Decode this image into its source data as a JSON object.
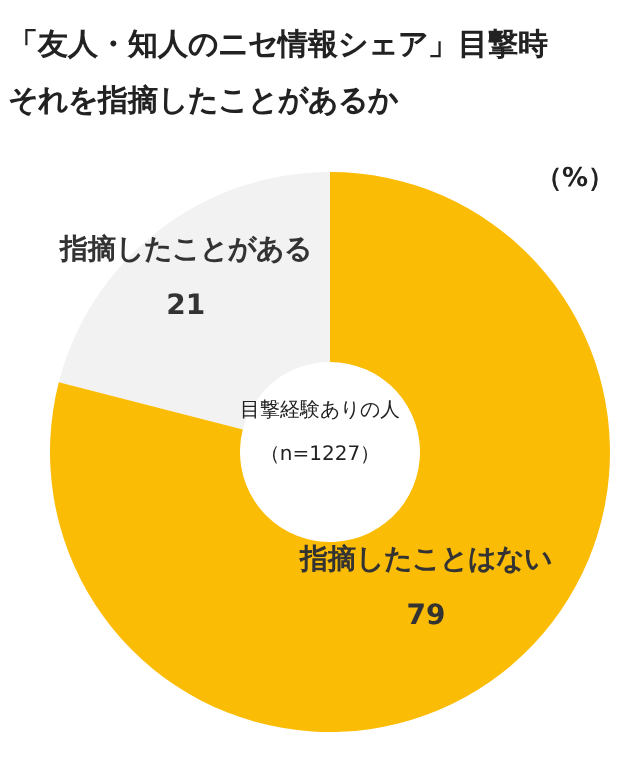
{
  "chart_data": {
    "type": "donut",
    "title": "「友人・知人のニセ情報シェア」目撃時",
    "subtitle": "それを指摘したことがあるか",
    "categories": [
      "指摘したことがある",
      "指摘したことはない"
    ],
    "values": [
      21,
      79
    ],
    "colors": [
      "#f2f2f2",
      "#fbbc05"
    ],
    "data_labels": true,
    "annotations": [
      "（%）",
      "目撃経験ありの人",
      "（n=1227）"
    ]
  }
}
